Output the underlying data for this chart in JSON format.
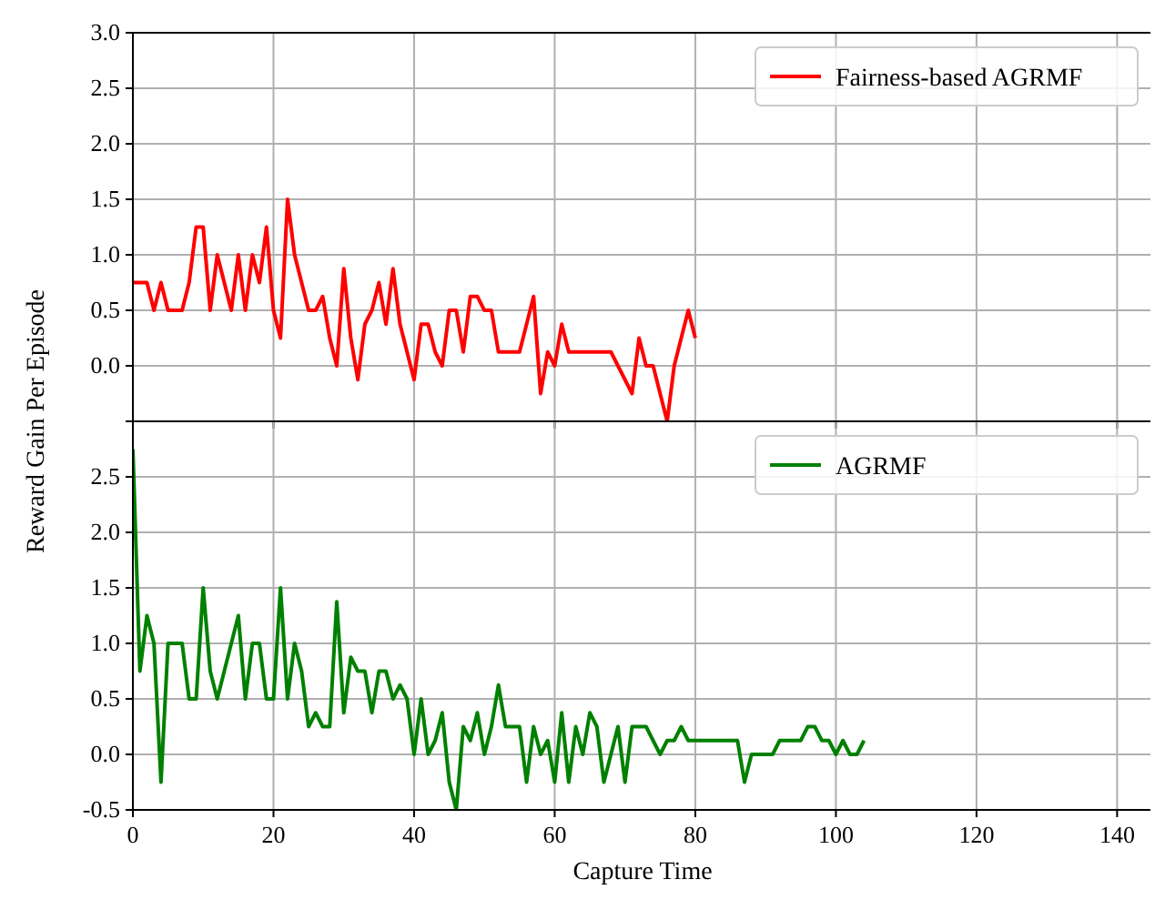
{
  "chart_data": [
    {
      "type": "line",
      "ylabel": "Reward Gain Per Episode",
      "xlim": [
        0,
        145
      ],
      "xticks": [
        0,
        20,
        40,
        60,
        80,
        100,
        120,
        140
      ],
      "ylim": [
        -0.5,
        3.0
      ],
      "yticks": [
        {
          "value": -0.5,
          "label": null
        },
        {
          "value": 0,
          "label": "0.0"
        },
        0.5,
        {
          "value": 1,
          "label": "1.0"
        },
        1.5,
        {
          "value": 2,
          "label": "2.0"
        },
        2.5,
        {
          "value": 3,
          "label": "3.0"
        }
      ],
      "tick_labels": "y",
      "grid": true,
      "legend": "top right",
      "series": [
        {
          "name": "Fairness-based AGRMF",
          "color": "#ff0000",
          "x": [
            0,
            2,
            3,
            4,
            5,
            7,
            8,
            9,
            10,
            11,
            12,
            13,
            14,
            15,
            16,
            17,
            18,
            19,
            20,
            21,
            22,
            23,
            24,
            25,
            26,
            27,
            28,
            29,
            30,
            31,
            32,
            33,
            34,
            35,
            36,
            37,
            38,
            39,
            40,
            41,
            42,
            43,
            44,
            45,
            46,
            47,
            48,
            49,
            50,
            51,
            52,
            55,
            57,
            58,
            59,
            60,
            61,
            62,
            68,
            71,
            72,
            73,
            74,
            76,
            77,
            79,
            80
          ],
          "values": [
            0.75,
            0.75,
            0.5,
            0.75,
            0.5,
            0.5,
            0.75,
            1.25,
            1.25,
            0.5,
            1.0,
            0.75,
            0.5,
            1.0,
            0.5,
            1.0,
            0.75,
            1.25,
            0.5,
            0.25,
            1.5,
            1.0,
            0.75,
            0.5,
            0.5,
            0.625,
            0.25,
            0,
            0.875,
            0.25,
            -0.125,
            0.375,
            0.5,
            0.75,
            0.375,
            0.875,
            0.375,
            0.125,
            -0.125,
            0.375,
            0.375,
            0.125,
            0,
            0.5,
            0.5,
            0.125,
            0.625,
            0.625,
            0.5,
            0.5,
            0.125,
            0.125,
            0.625,
            -0.25,
            0.125,
            0,
            0.375,
            0.125,
            0.125,
            -0.25,
            0.25,
            0,
            0,
            -0.5,
            0,
            0.5,
            0.25
          ]
        }
      ]
    },
    {
      "type": "line",
      "xlabel": "Capture Time",
      "xlim": [
        0,
        145
      ],
      "xticks": [
        0,
        20,
        40,
        60,
        80,
        100,
        120,
        140
      ],
      "ylim": [
        -0.5,
        3.0
      ],
      "yticks": [
        -0.5,
        {
          "value": 0,
          "label": "0.0"
        },
        0.5,
        {
          "value": 1,
          "label": "1.0"
        },
        1.5,
        {
          "value": 2,
          "label": "2.0"
        },
        2.5,
        {
          "value": 3,
          "label": null
        }
      ],
      "grid": true,
      "legend": "top right",
      "series": [
        {
          "name": "AGRMF",
          "color": "#008000",
          "x": [
            0,
            1,
            2,
            3,
            4,
            5,
            7,
            8,
            9,
            10,
            11,
            12,
            15,
            16,
            17,
            18,
            19,
            20,
            21,
            22,
            23,
            24,
            25,
            26,
            27,
            28,
            29,
            30,
            31,
            32,
            33,
            34,
            35,
            36,
            37,
            38,
            39,
            40,
            41,
            42,
            43,
            44,
            45,
            46,
            47,
            48,
            49,
            50,
            51,
            52,
            53,
            54,
            55,
            56,
            57,
            58,
            59,
            60,
            61,
            62,
            63,
            64,
            65,
            66,
            67,
            68,
            69,
            70,
            71,
            72,
            73,
            74,
            75,
            76,
            77,
            78,
            79,
            80,
            86,
            87,
            88,
            91,
            92,
            95,
            96,
            97,
            98,
            99,
            100,
            101,
            102,
            103,
            104
          ],
          "values": [
            2.75,
            0.75,
            1.25,
            1.0,
            -0.25,
            1.0,
            1.0,
            0.5,
            0.5,
            1.5,
            0.75,
            0.5,
            1.25,
            0.5,
            1.0,
            1.0,
            0.5,
            0.5,
            1.5,
            0.5,
            1.0,
            0.75,
            0.25,
            0.375,
            0.25,
            0.25,
            1.375,
            0.375,
            0.875,
            0.75,
            0.75,
            0.375,
            0.75,
            0.75,
            0.5,
            0.625,
            0.5,
            0,
            0.5,
            0,
            0.125,
            0.375,
            -0.25,
            -0.5,
            0.25,
            0.125,
            0.375,
            0,
            0.25,
            0.625,
            0.25,
            0.25,
            0.25,
            -0.25,
            0.25,
            0,
            0.125,
            -0.25,
            0.375,
            -0.25,
            0.25,
            0,
            0.375,
            0.25,
            -0.25,
            0,
            0.25,
            -0.25,
            0.25,
            0.25,
            0.25,
            0.125,
            0,
            0.125,
            0.125,
            0.25,
            0.125,
            0.125,
            0.125,
            -0.25,
            0,
            0,
            0.125,
            0.125,
            0.25,
            0.25,
            0.125,
            0.125,
            0,
            0.125,
            0,
            0,
            0.125
          ]
        }
      ]
    }
  ]
}
